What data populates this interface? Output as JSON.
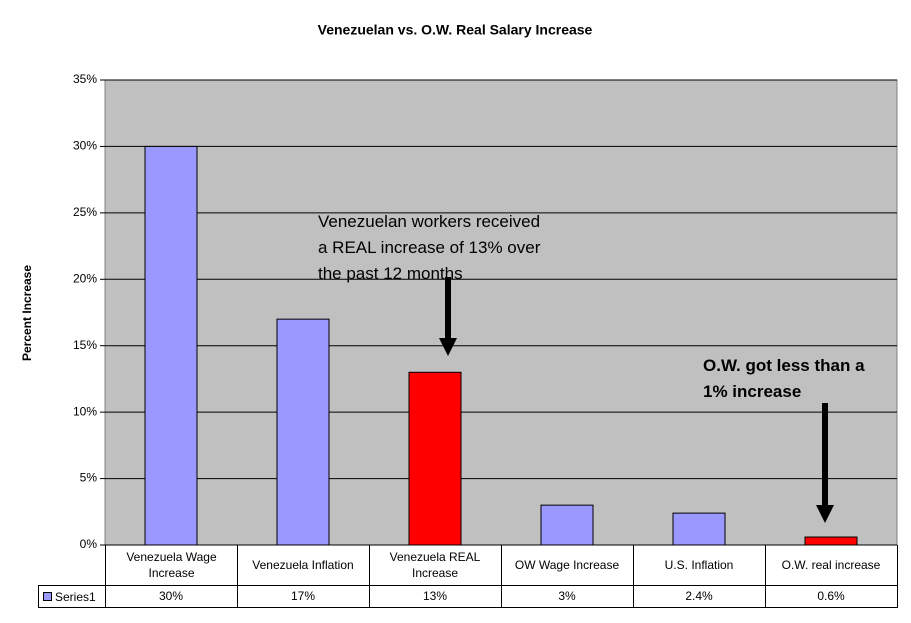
{
  "chart_data": {
    "type": "bar",
    "title": "Venezuelan vs. O.W. Real Salary Increase",
    "y_label": "Percent Increase",
    "categories": [
      "Venezuela Wage Increase",
      "Venezuela Inflation",
      "Venezuela REAL Increase",
      "OW Wage Increase",
      "U.S. Inflation",
      "O.W. real increase"
    ],
    "series": [
      {
        "name": "Series1",
        "color": "#9999ff",
        "values": [
          30,
          17,
          13,
          3,
          2.4,
          0.6
        ],
        "value_labels": [
          "30%",
          "17%",
          "13%",
          "3%",
          "2.4%",
          "0.6%"
        ],
        "point_colors": [
          "#9999ff",
          "#9999ff",
          "#ff0000",
          "#9999ff",
          "#9999ff",
          "#ff0000"
        ]
      }
    ],
    "ylim": [
      0,
      35
    ],
    "yticks": [
      {
        "value": 0,
        "label": "0%"
      },
      {
        "value": 5,
        "label": "5%"
      },
      {
        "value": 10,
        "label": "10%"
      },
      {
        "value": 15,
        "label": "15%"
      },
      {
        "value": 20,
        "label": "20%"
      },
      {
        "value": 25,
        "label": "25%"
      },
      {
        "value": 30,
        "label": "30%"
      },
      {
        "value": 35,
        "label": "35%"
      }
    ],
    "grid": true,
    "annotations": [
      {
        "lines": [
          "Venezuelan workers received",
          "a REAL increase of 13% over",
          "the past 12 months"
        ]
      },
      {
        "lines": [
          "O.W. got less than a",
          "1% increase"
        ]
      }
    ]
  }
}
